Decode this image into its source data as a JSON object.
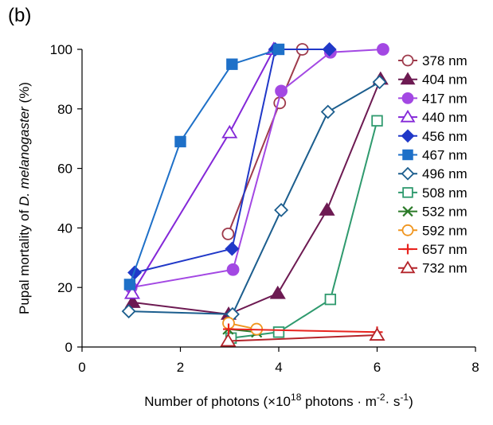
{
  "chart_data": {
    "type": "line",
    "panel_label": "(b)",
    "xlabel": "Number of photons (×10¹⁸ photons · m⁻² · s⁻¹)",
    "xlabel_parts": {
      "prefix": "Number of photons (×10",
      "exp1": "18",
      "middle": " photons · m",
      "exp2": "-2",
      "sep": "· s",
      "exp3": "-1",
      "suffix": ")"
    },
    "ylabel": "Pupal mortality of D. melanogaster (%)",
    "ylabel_parts": {
      "pre": "Pupal mortality of ",
      "italic": "D. melanogaster",
      "post": " (%)"
    },
    "xlim": [
      0,
      8
    ],
    "ylim": [
      0,
      100
    ],
    "xticks": [
      0,
      2,
      4,
      6,
      8
    ],
    "yticks": [
      0,
      20,
      40,
      60,
      80,
      100
    ],
    "grid": false,
    "legend_position": "right",
    "series": [
      {
        "name": "378 nm",
        "color": "#9e3a4b",
        "marker": "circle",
        "filled": false,
        "points": [
          [
            2.97,
            38
          ],
          [
            4.02,
            82
          ],
          [
            4.48,
            100
          ]
        ]
      },
      {
        "name": "404 nm",
        "color": "#6d1a52",
        "marker": "triangle",
        "filled": true,
        "points": [
          [
            1.03,
            15
          ],
          [
            2.98,
            11
          ],
          [
            3.98,
            18
          ],
          [
            4.98,
            46
          ],
          [
            6.07,
            90
          ]
        ]
      },
      {
        "name": "417 nm",
        "color": "#a348e3",
        "marker": "circle",
        "filled": true,
        "points": [
          [
            1.0,
            20
          ],
          [
            3.07,
            26
          ],
          [
            4.05,
            86
          ],
          [
            5.05,
            99
          ],
          [
            6.12,
            100
          ]
        ]
      },
      {
        "name": "440 nm",
        "color": "#8428d8",
        "marker": "triangle",
        "filled": false,
        "points": [
          [
            1.02,
            18
          ],
          [
            3.0,
            72
          ],
          [
            3.9,
            100
          ]
        ]
      },
      {
        "name": "456 nm",
        "color": "#2038c8",
        "marker": "diamond",
        "filled": true,
        "points": [
          [
            1.07,
            25
          ],
          [
            3.05,
            33
          ],
          [
            3.93,
            100
          ],
          [
            5.03,
            100
          ]
        ]
      },
      {
        "name": "467 nm",
        "color": "#1e70c8",
        "marker": "square",
        "filled": true,
        "points": [
          [
            0.97,
            21
          ],
          [
            2.0,
            69
          ],
          [
            3.05,
            95
          ],
          [
            4.0,
            100
          ]
        ]
      },
      {
        "name": "496 nm",
        "color": "#1c5e8e",
        "marker": "diamond",
        "filled": false,
        "points": [
          [
            0.95,
            12
          ],
          [
            3.06,
            11
          ],
          [
            4.05,
            46
          ],
          [
            5.0,
            79
          ],
          [
            6.05,
            89
          ]
        ]
      },
      {
        "name": "508 nm",
        "color": "#2f9a6e",
        "marker": "square",
        "filled": false,
        "points": [
          [
            3.03,
            3
          ],
          [
            4.0,
            5
          ],
          [
            5.05,
            16
          ],
          [
            6.0,
            76
          ]
        ]
      },
      {
        "name": "532 nm",
        "color": "#2b7a28",
        "marker": "x",
        "filled": false,
        "points": [
          [
            2.97,
            6
          ],
          [
            3.55,
            5
          ]
        ]
      },
      {
        "name": "592 nm",
        "color": "#f0951e",
        "marker": "circle",
        "filled": false,
        "points": [
          [
            2.98,
            8
          ],
          [
            3.55,
            6
          ]
        ]
      },
      {
        "name": "657 nm",
        "color": "#e8231e",
        "marker": "plus",
        "filled": false,
        "points": [
          [
            2.98,
            6
          ],
          [
            6.0,
            5
          ]
        ]
      },
      {
        "name": "732 nm",
        "color": "#b4242a",
        "marker": "triangle",
        "filled": false,
        "points": [
          [
            2.97,
            2
          ],
          [
            6.0,
            4
          ]
        ]
      }
    ]
  }
}
